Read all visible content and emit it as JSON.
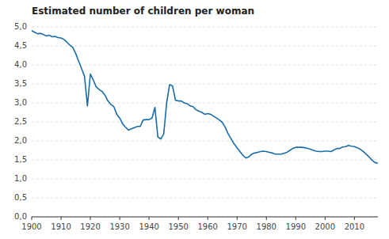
{
  "chart_data": {
    "type": "line",
    "title": "Estimated number of children per woman",
    "color": "#1a6ca8",
    "grid": true,
    "xlim": [
      1900,
      2018
    ],
    "xticks": [
      1900,
      1910,
      1920,
      1930,
      1940,
      1950,
      1960,
      1970,
      1980,
      1990,
      2000,
      2010
    ],
    "ylim": [
      0,
      5.0
    ],
    "yticks": [
      {
        "value": 0.0,
        "label": "0,0"
      },
      {
        "value": 0.5,
        "label": "0,5"
      },
      {
        "value": 1.0,
        "label": "1,0"
      },
      {
        "value": 1.5,
        "label": "1,5"
      },
      {
        "value": 2.0,
        "label": "2,0"
      },
      {
        "value": 2.5,
        "label": "2,5"
      },
      {
        "value": 3.0,
        "label": "3,0"
      },
      {
        "value": 3.5,
        "label": "3,5"
      },
      {
        "value": 4.0,
        "label": "4,0"
      },
      {
        "value": 4.5,
        "label": "4,5"
      },
      {
        "value": 5.0,
        "label": "5,0"
      }
    ],
    "x": [
      1900,
      1901,
      1902,
      1903,
      1904,
      1905,
      1906,
      1907,
      1908,
      1909,
      1910,
      1911,
      1912,
      1913,
      1914,
      1915,
      1916,
      1917,
      1918,
      1919,
      1920,
      1921,
      1922,
      1923,
      1924,
      1925,
      1926,
      1927,
      1928,
      1929,
      1930,
      1931,
      1932,
      1933,
      1934,
      1935,
      1936,
      1937,
      1938,
      1939,
      1940,
      1941,
      1942,
      1943,
      1944,
      1945,
      1946,
      1947,
      1948,
      1949,
      1950,
      1951,
      1952,
      1953,
      1954,
      1955,
      1956,
      1957,
      1958,
      1959,
      1960,
      1961,
      1962,
      1963,
      1964,
      1965,
      1966,
      1967,
      1968,
      1969,
      1970,
      1971,
      1972,
      1973,
      1974,
      1975,
      1976,
      1977,
      1978,
      1979,
      1980,
      1981,
      1982,
      1983,
      1984,
      1985,
      1986,
      1987,
      1988,
      1989,
      1990,
      1991,
      1992,
      1993,
      1994,
      1995,
      1996,
      1997,
      1998,
      1999,
      2000,
      2001,
      2002,
      2003,
      2004,
      2005,
      2006,
      2007,
      2008,
      2009,
      2010,
      2011,
      2012,
      2013,
      2014,
      2015,
      2016,
      2017,
      2018
    ],
    "values": [
      4.9,
      4.86,
      4.82,
      4.83,
      4.8,
      4.76,
      4.78,
      4.74,
      4.75,
      4.72,
      4.71,
      4.67,
      4.6,
      4.52,
      4.46,
      4.3,
      4.1,
      3.9,
      3.7,
      2.92,
      3.76,
      3.6,
      3.42,
      3.35,
      3.3,
      3.2,
      3.05,
      2.96,
      2.9,
      2.7,
      2.6,
      2.45,
      2.36,
      2.28,
      2.32,
      2.35,
      2.38,
      2.38,
      2.55,
      2.56,
      2.56,
      2.6,
      2.88,
      2.1,
      2.05,
      2.18,
      3.0,
      3.48,
      3.45,
      3.07,
      3.05,
      3.05,
      3.0,
      2.98,
      2.92,
      2.9,
      2.82,
      2.78,
      2.75,
      2.7,
      2.72,
      2.7,
      2.65,
      2.6,
      2.55,
      2.48,
      2.35,
      2.18,
      2.05,
      1.92,
      1.82,
      1.72,
      1.62,
      1.55,
      1.58,
      1.65,
      1.68,
      1.7,
      1.72,
      1.73,
      1.72,
      1.7,
      1.68,
      1.65,
      1.65,
      1.65,
      1.67,
      1.7,
      1.75,
      1.8,
      1.83,
      1.83,
      1.83,
      1.82,
      1.8,
      1.78,
      1.75,
      1.73,
      1.72,
      1.72,
      1.73,
      1.73,
      1.72,
      1.76,
      1.8,
      1.8,
      1.84,
      1.85,
      1.88,
      1.86,
      1.85,
      1.82,
      1.78,
      1.72,
      1.65,
      1.58,
      1.49,
      1.43,
      1.41
    ]
  }
}
